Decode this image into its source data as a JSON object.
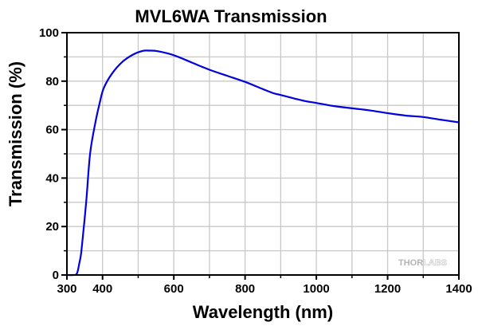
{
  "chart_data": {
    "type": "line",
    "title": "MVL6WA Transmission",
    "xlabel": "Wavelength (nm)",
    "ylabel": "Transmission (%)",
    "xlim": [
      300,
      1400
    ],
    "ylim": [
      0,
      100
    ],
    "x_ticks": [
      300,
      400,
      600,
      800,
      1000,
      1200,
      1400
    ],
    "x_tick_labels": [
      "300",
      "400",
      "600",
      "800",
      "1000",
      "1200",
      "1400"
    ],
    "x_minor_ticks": [
      500,
      700,
      900,
      1100,
      1300
    ],
    "y_ticks": [
      0,
      20,
      40,
      60,
      80,
      100
    ],
    "y_tick_labels": [
      "0",
      "20",
      "40",
      "60",
      "80",
      "100"
    ],
    "y_minor_ticks": [
      10,
      30,
      50,
      70,
      90
    ],
    "grid": true,
    "grid_x": [
      400,
      500,
      600,
      700,
      800,
      900,
      1000,
      1100,
      1200,
      1300
    ],
    "grid_y": [
      10,
      20,
      30,
      40,
      50,
      60,
      70,
      80,
      90
    ],
    "watermark": {
      "part1": "THOR",
      "part2": "LABS"
    },
    "series": [
      {
        "name": "MVL6WA Transmission",
        "color": "#0000e0",
        "x": [
          300,
          317,
          328,
          335,
          341,
          354,
          365,
          380,
          392,
          403,
          426,
          456,
          486,
          513,
          530,
          553,
          600,
          650,
          700,
          750,
          800,
          850,
          880,
          900,
          962,
          1000,
          1050,
          1100,
          1147,
          1200,
          1250,
          1300,
          1348,
          1400
        ],
        "y": [
          0,
          0,
          0.6,
          5,
          10.4,
          30,
          50,
          63,
          71,
          77,
          83,
          88,
          91,
          92.5,
          92.6,
          92.4,
          90.7,
          87.7,
          84.7,
          82.2,
          79.7,
          76.7,
          75,
          74.3,
          72,
          71,
          69.7,
          68.8,
          68,
          66.8,
          65.8,
          65.2,
          64.1,
          63
        ]
      }
    ]
  }
}
